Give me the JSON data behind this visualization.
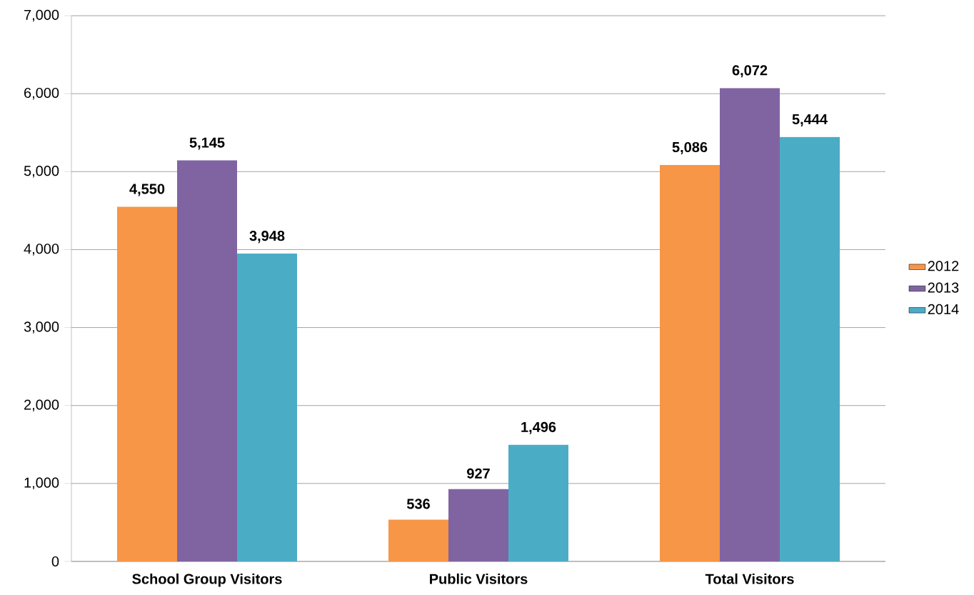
{
  "chart_data": {
    "type": "bar",
    "categories": [
      "School Group Visitors",
      "Public Visitors",
      "Total Visitors"
    ],
    "series": [
      {
        "name": "2012",
        "color": "#f79646",
        "values": [
          4550,
          536,
          5086
        ],
        "value_labels": [
          "4,550",
          "536",
          "5,086"
        ]
      },
      {
        "name": "2013",
        "color": "#8064a2",
        "values": [
          5145,
          927,
          6072
        ],
        "value_labels": [
          "5,145",
          "927",
          "6,072"
        ]
      },
      {
        "name": "2014",
        "color": "#4bacc6",
        "values": [
          3948,
          1496,
          5444
        ],
        "value_labels": [
          "3,948",
          "1,496",
          "5,444"
        ]
      }
    ],
    "ylim": [
      0,
      7000
    ],
    "yticks": [
      0,
      {
        "value": 1000,
        "label": "1,000"
      },
      {
        "value": 2000,
        "label": "2,000"
      },
      {
        "value": 3000,
        "label": "3,000"
      },
      {
        "value": 4000,
        "label": "4,000"
      },
      {
        "value": 5000,
        "label": "5,000"
      },
      {
        "value": 6000,
        "label": "6,000"
      },
      {
        "value": 7000,
        "label": "7,000"
      }
    ],
    "grid": "y",
    "legend": "right"
  }
}
